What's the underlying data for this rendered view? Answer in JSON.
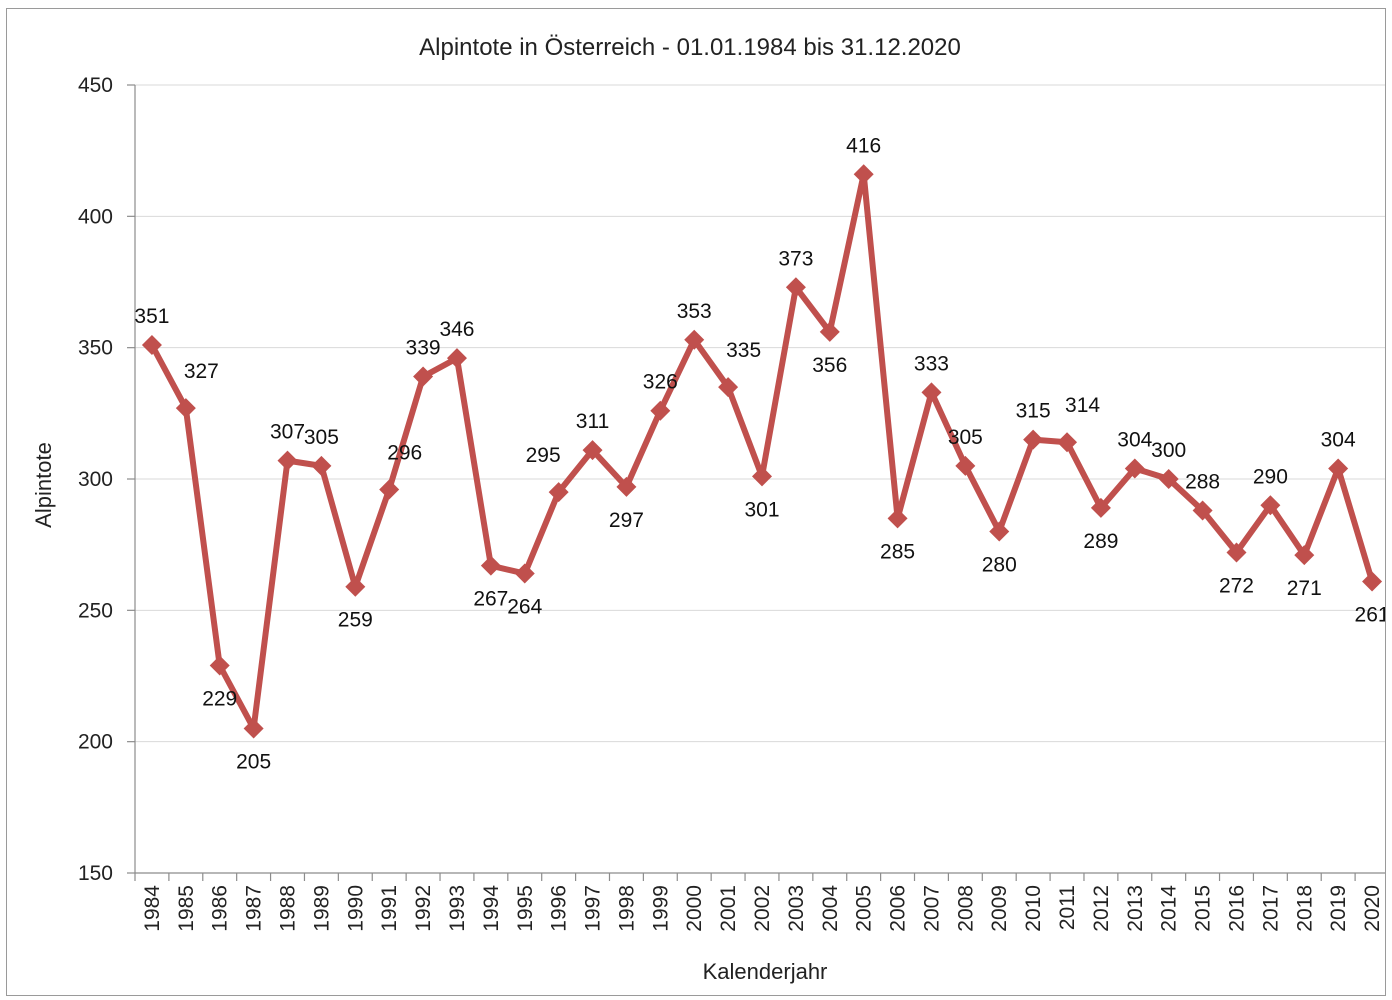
{
  "chart_data": {
    "type": "line",
    "title": "Alpintote in Österreich - 01.01.1984 bis 31.12.2020",
    "xlabel": "Kalenderjahr",
    "ylabel": "Alpintote",
    "ylim": [
      150,
      450
    ],
    "yticks": [
      150,
      200,
      250,
      300,
      350,
      400,
      450
    ],
    "grid": true,
    "line_color": "#c0504d",
    "marker": "diamond",
    "categories": [
      "1984",
      "1985",
      "1986",
      "1987",
      "1988",
      "1989",
      "1990",
      "1991",
      "1992",
      "1993",
      "1994",
      "1995",
      "1996",
      "1997",
      "1998",
      "1999",
      "2000",
      "2001",
      "2002",
      "2003",
      "2004",
      "2005",
      "2006",
      "2007",
      "2008",
      "2009",
      "2010",
      "2011",
      "2012",
      "2013",
      "2014",
      "2015",
      "2016",
      "2017",
      "2018",
      "2019",
      "2020"
    ],
    "values": [
      351,
      327,
      229,
      205,
      307,
      305,
      259,
      296,
      339,
      346,
      267,
      264,
      295,
      311,
      297,
      326,
      353,
      335,
      301,
      373,
      356,
      416,
      285,
      333,
      305,
      280,
      315,
      314,
      289,
      304,
      300,
      288,
      272,
      290,
      271,
      304,
      261
    ],
    "label_positions": [
      "above",
      "right",
      "below",
      "below",
      "above",
      "above",
      "below",
      "right",
      "above",
      "above",
      "below",
      "below",
      "left",
      "above",
      "below",
      "above",
      "above",
      "right",
      "below",
      "above",
      "below",
      "above",
      "below",
      "above",
      "above",
      "below",
      "above",
      "right",
      "below",
      "above",
      "above",
      "above",
      "below",
      "above",
      "below",
      "above",
      "below"
    ]
  }
}
